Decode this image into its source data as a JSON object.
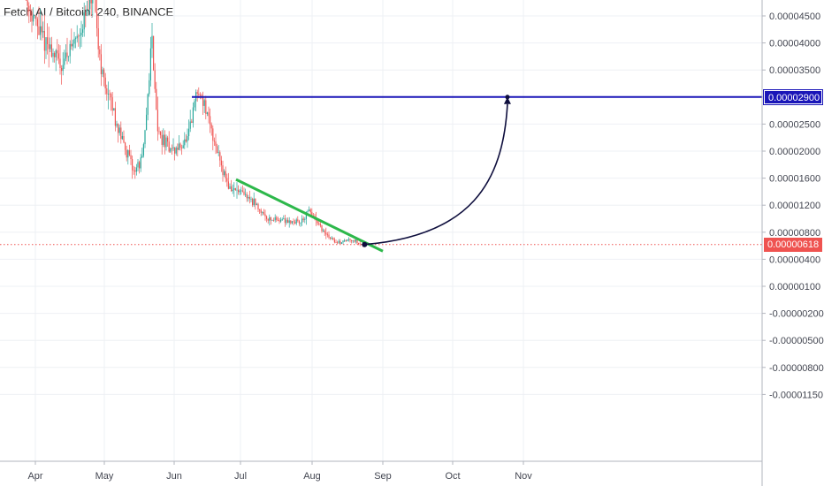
{
  "header": {
    "symbol_title": "Fetch.AI / Bitcoin, 240, BINANCE"
  },
  "colors": {
    "candle_up": "#26a69a",
    "candle_down": "#ef5350",
    "resistance_line": "#1a16b8",
    "trend_line": "#2db84b",
    "projection_arc": "#0e0e3d",
    "current_price_line": "#ef5350",
    "grid": "#eef0f4",
    "axis_text": "#434651"
  },
  "price_tags": {
    "target": "0.00002900",
    "current": "0.00000618"
  },
  "chart_data": {
    "type": "candlestick",
    "symbol": "Fetch.AI / Bitcoin",
    "interval": "240",
    "exchange": "BINANCE",
    "y_scale": "log",
    "y_ticks": [
      "0.00004500",
      "0.00004000",
      "0.00003500",
      "0.00002900",
      "0.00002500",
      "0.00002000",
      "0.00001600",
      "0.00001200",
      "0.00000800",
      "0.00000400",
      "0.00000100",
      "-0.00000200",
      "-0.00000500",
      "-0.00000800",
      "-0.00001150"
    ],
    "x_ticks": [
      "Apr",
      "May",
      "Jun",
      "Jul",
      "Aug",
      "Sep",
      "Oct",
      "Nov"
    ],
    "price_path": [
      {
        "date": "2020-03-28",
        "price": 4.8e-05
      },
      {
        "date": "2020-04-04",
        "price": 4.1e-05
      },
      {
        "date": "2020-04-12",
        "price": 3.6e-05
      },
      {
        "date": "2020-04-20",
        "price": 4.2e-05
      },
      {
        "date": "2020-04-26",
        "price": 4.85e-05
      },
      {
        "date": "2020-05-01",
        "price": 3.2e-05
      },
      {
        "date": "2020-05-07",
        "price": 2.45e-05
      },
      {
        "date": "2020-05-14",
        "price": 1.7e-05
      },
      {
        "date": "2020-05-18",
        "price": 1.9e-05
      },
      {
        "date": "2020-05-22",
        "price": 4.2e-05
      },
      {
        "date": "2020-05-25",
        "price": 2.3e-05
      },
      {
        "date": "2020-06-01",
        "price": 2e-05
      },
      {
        "date": "2020-06-07",
        "price": 2.2e-05
      },
      {
        "date": "2020-06-11",
        "price": 3e-05
      },
      {
        "date": "2020-06-14",
        "price": 2.9e-05
      },
      {
        "date": "2020-06-20",
        "price": 2.1e-05
      },
      {
        "date": "2020-06-26",
        "price": 1.45e-05
      },
      {
        "date": "2020-06-30",
        "price": 1.4e-05
      },
      {
        "date": "2020-07-06",
        "price": 1.28e-05
      },
      {
        "date": "2020-07-13",
        "price": 1e-05
      },
      {
        "date": "2020-07-20",
        "price": 9.8e-06
      },
      {
        "date": "2020-07-27",
        "price": 9.5e-06
      },
      {
        "date": "2020-07-31",
        "price": 1.12e-05
      },
      {
        "date": "2020-08-06",
        "price": 8e-06
      },
      {
        "date": "2020-08-12",
        "price": 6.4e-06
      },
      {
        "date": "2020-08-18",
        "price": 7e-06
      },
      {
        "date": "2020-08-23",
        "price": 6.2e-06
      },
      {
        "date": "2020-08-24",
        "price": 6.18e-06
      }
    ],
    "drawings": {
      "resistance_line": {
        "price": 2.9e-05,
        "from": "2020-06-09",
        "to": "axis"
      },
      "downtrend_line": [
        {
          "date": "2020-06-29",
          "price": 1.58e-05
        },
        {
          "date": "2020-09-01",
          "price": 5.2e-06
        }
      ],
      "projection_arc": {
        "from": {
          "date": "2020-08-24",
          "price": 6.18e-06
        },
        "to": {
          "date": "2020-10-25",
          "price": 2.9e-05
        }
      }
    },
    "current_price": 6.18e-06,
    "target_price": 2.9e-05
  }
}
